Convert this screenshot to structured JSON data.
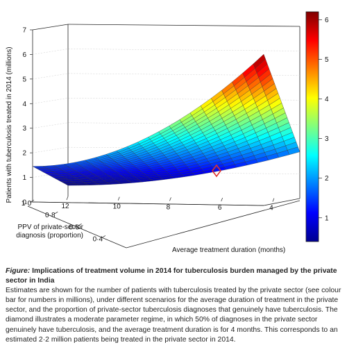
{
  "chart_data": {
    "type": "surface",
    "zlabel": "Patients with tuberculosis treated in 2014 (millions)",
    "xlabel": "Average treatment duration (months)",
    "ylabel_line1": "PPV of private-sector",
    "ylabel_line2": "diagnosis (proportion)",
    "zlim": [
      0,
      7
    ],
    "z_ticks": [
      "0",
      "1",
      "2",
      "3",
      "4",
      "5",
      "6",
      "7"
    ],
    "x_range": [
      12,
      3
    ],
    "x_ticks": [
      "12",
      "10",
      "8",
      "6",
      "4"
    ],
    "y_range": [
      0.3,
      1.0
    ],
    "y_ticks": [
      "1·0",
      "0·8",
      "0·6",
      "0·4"
    ],
    "colorbar_range": [
      0.4,
      6.2
    ],
    "colorbar_ticks": [
      "1",
      "2",
      "3",
      "4",
      "5",
      "6"
    ],
    "surface_corners": [
      {
        "duration_months": 12,
        "ppv": 1.0,
        "millions": 1.45
      },
      {
        "duration_months": 12,
        "ppv": 0.3,
        "millions": 0.45
      },
      {
        "duration_months": 3,
        "ppv": 1.0,
        "millions": 6.15
      },
      {
        "duration_months": 3,
        "ppv": 0.3,
        "millions": 1.9
      }
    ],
    "grid_on": true,
    "highlight": {
      "duration_months": 4,
      "ppv": 0.5,
      "millions": 2.2,
      "marker": "diamond",
      "color": "#e0312b"
    }
  },
  "caption": {
    "lead_italic": "Figure:",
    "lead_bold": " Implications of treatment volume in 2014 for tuberculosis burden managed by the private sector in India",
    "body": "Estimates are shown for the number of patients with tuberculosis treated by the private sector (see colour bar for numbers in millions), under different scenarios for the average duration of treatment in the private sector, and the proportion of private-sector tuberculosis diagnoses that genuinely have tuberculosis. The diamond illustrates a moderate parameter regime, in which 50% of diagnoses in the private sector genuinely have tuberculosis, and the average treatment duration is for 4 months. This corresponds to an estimated 2·2 million patients being treated in the private sector in 2014."
  }
}
